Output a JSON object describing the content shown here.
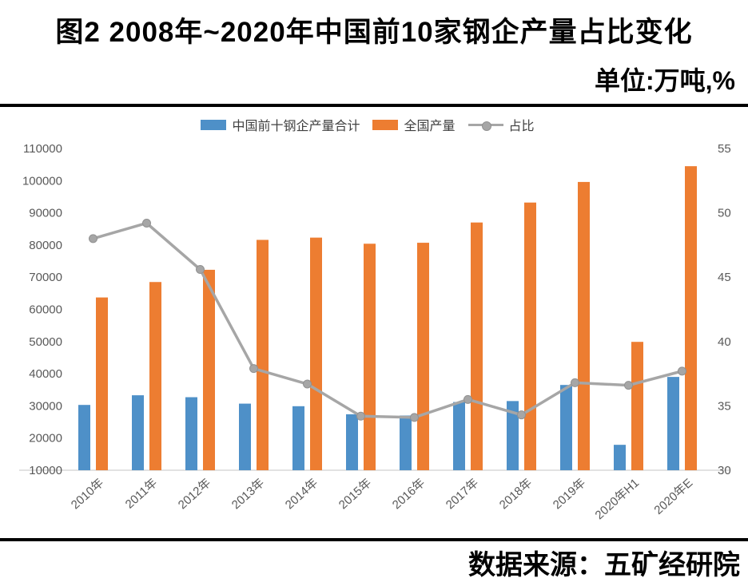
{
  "page": {
    "title": "图2 2008年~2020年中国前10家钢企产量占比变化",
    "unit_label": "单位:万吨,%",
    "source_label": "数据来源：五矿经研院"
  },
  "colors": {
    "top10_bar": "#4E90C8",
    "national_bar": "#ED7D31",
    "share_line": "#A6A6A6",
    "share_marker_edge": "#919191",
    "axis_text": "#595959",
    "axis_line": "#D9D9D9",
    "divider": "#000000"
  },
  "chart_data": {
    "type": "bar",
    "combo": "bar+line",
    "title": "图2 2008年~2020年中国前10家钢企产量占比变化",
    "unit": "单位:万吨,%",
    "categories": [
      "2010年",
      "2011年",
      "2012年",
      "2013年",
      "2014年",
      "2015年",
      "2016年",
      "2017年",
      "2018年",
      "2019年",
      "2020年H1",
      "2020年E"
    ],
    "series": [
      {
        "name": "中国前十钢企产量合计",
        "type": "bar",
        "yaxis": "left",
        "color": "#4E90C8",
        "values": [
          30300,
          33300,
          32700,
          30700,
          29900,
          27400,
          27000,
          31200,
          31500,
          36500,
          17900,
          39000
        ]
      },
      {
        "name": "全国产量",
        "type": "bar",
        "yaxis": "left",
        "color": "#ED7D31",
        "values": [
          63700,
          68500,
          72300,
          81600,
          82300,
          80400,
          80700,
          87000,
          93200,
          99600,
          49900,
          104500
        ]
      },
      {
        "name": "占比",
        "type": "line",
        "yaxis": "right",
        "color": "#A6A6A6",
        "values": [
          48.0,
          49.2,
          45.6,
          37.9,
          36.7,
          34.2,
          34.1,
          35.5,
          34.3,
          36.8,
          36.6,
          37.7
        ]
      }
    ],
    "left_axis": {
      "min": 10000,
      "max": 110000,
      "step": 10000
    },
    "right_axis": {
      "min": 30,
      "max": 55,
      "step": 5
    },
    "legend_position": "top",
    "gridlines": false,
    "source": "数据来源：五矿经研院"
  }
}
